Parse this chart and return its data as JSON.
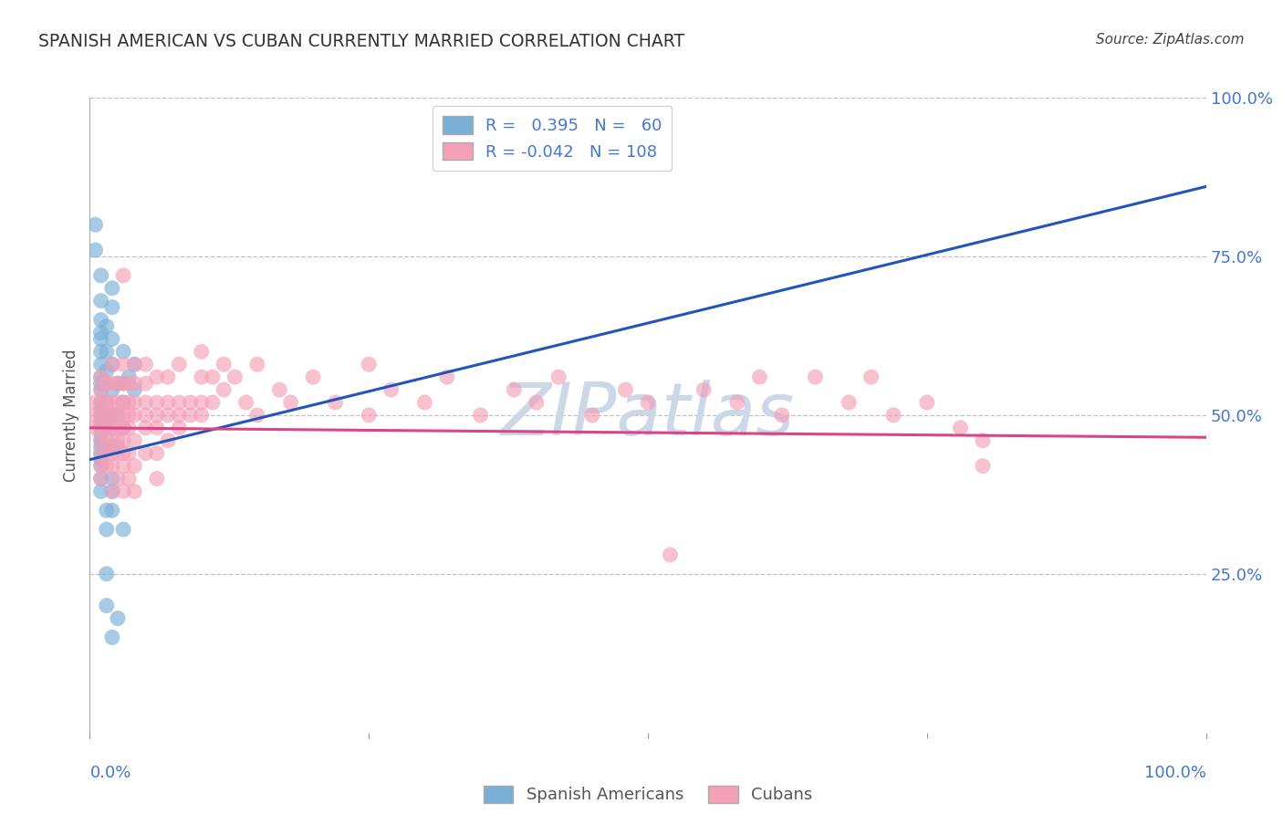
{
  "title": "SPANISH AMERICAN VS CUBAN CURRENTLY MARRIED CORRELATION CHART",
  "source": "Source: ZipAtlas.com",
  "ylabel": "Currently Married",
  "watermark": "ZIPAtlas",
  "blue_scatter": [
    [
      0.005,
      0.8
    ],
    [
      0.005,
      0.76
    ],
    [
      0.01,
      0.72
    ],
    [
      0.01,
      0.68
    ],
    [
      0.01,
      0.65
    ],
    [
      0.01,
      0.63
    ],
    [
      0.01,
      0.62
    ],
    [
      0.01,
      0.6
    ],
    [
      0.01,
      0.58
    ],
    [
      0.01,
      0.56
    ],
    [
      0.01,
      0.55
    ],
    [
      0.01,
      0.54
    ],
    [
      0.01,
      0.52
    ],
    [
      0.01,
      0.51
    ],
    [
      0.01,
      0.5
    ],
    [
      0.01,
      0.49
    ],
    [
      0.01,
      0.48
    ],
    [
      0.01,
      0.47
    ],
    [
      0.01,
      0.46
    ],
    [
      0.01,
      0.45
    ],
    [
      0.01,
      0.44
    ],
    [
      0.01,
      0.43
    ],
    [
      0.01,
      0.42
    ],
    [
      0.01,
      0.4
    ],
    [
      0.01,
      0.38
    ],
    [
      0.015,
      0.64
    ],
    [
      0.015,
      0.6
    ],
    [
      0.015,
      0.57
    ],
    [
      0.015,
      0.55
    ],
    [
      0.015,
      0.52
    ],
    [
      0.015,
      0.5
    ],
    [
      0.015,
      0.48
    ],
    [
      0.015,
      0.45
    ],
    [
      0.015,
      0.35
    ],
    [
      0.015,
      0.32
    ],
    [
      0.02,
      0.7
    ],
    [
      0.02,
      0.67
    ],
    [
      0.02,
      0.62
    ],
    [
      0.02,
      0.58
    ],
    [
      0.02,
      0.54
    ],
    [
      0.02,
      0.5
    ],
    [
      0.02,
      0.48
    ],
    [
      0.02,
      0.45
    ],
    [
      0.02,
      0.4
    ],
    [
      0.02,
      0.38
    ],
    [
      0.02,
      0.35
    ],
    [
      0.025,
      0.55
    ],
    [
      0.025,
      0.5
    ],
    [
      0.025,
      0.45
    ],
    [
      0.03,
      0.6
    ],
    [
      0.03,
      0.55
    ],
    [
      0.03,
      0.52
    ],
    [
      0.03,
      0.48
    ],
    [
      0.035,
      0.56
    ],
    [
      0.04,
      0.58
    ],
    [
      0.04,
      0.54
    ],
    [
      0.015,
      0.2
    ],
    [
      0.02,
      0.15
    ],
    [
      0.025,
      0.18
    ],
    [
      0.03,
      0.32
    ],
    [
      0.015,
      0.25
    ]
  ],
  "pink_scatter": [
    [
      0.005,
      0.52
    ],
    [
      0.005,
      0.5
    ],
    [
      0.005,
      0.48
    ],
    [
      0.01,
      0.56
    ],
    [
      0.01,
      0.54
    ],
    [
      0.01,
      0.52
    ],
    [
      0.01,
      0.5
    ],
    [
      0.01,
      0.48
    ],
    [
      0.01,
      0.46
    ],
    [
      0.01,
      0.44
    ],
    [
      0.01,
      0.42
    ],
    [
      0.01,
      0.4
    ],
    [
      0.015,
      0.55
    ],
    [
      0.015,
      0.52
    ],
    [
      0.015,
      0.5
    ],
    [
      0.015,
      0.48
    ],
    [
      0.015,
      0.46
    ],
    [
      0.015,
      0.44
    ],
    [
      0.015,
      0.42
    ],
    [
      0.02,
      0.58
    ],
    [
      0.02,
      0.55
    ],
    [
      0.02,
      0.52
    ],
    [
      0.02,
      0.5
    ],
    [
      0.02,
      0.48
    ],
    [
      0.02,
      0.46
    ],
    [
      0.02,
      0.44
    ],
    [
      0.02,
      0.42
    ],
    [
      0.02,
      0.38
    ],
    [
      0.025,
      0.55
    ],
    [
      0.025,
      0.52
    ],
    [
      0.025,
      0.5
    ],
    [
      0.025,
      0.48
    ],
    [
      0.025,
      0.46
    ],
    [
      0.025,
      0.44
    ],
    [
      0.025,
      0.4
    ],
    [
      0.03,
      0.72
    ],
    [
      0.03,
      0.58
    ],
    [
      0.03,
      0.55
    ],
    [
      0.03,
      0.52
    ],
    [
      0.03,
      0.5
    ],
    [
      0.03,
      0.48
    ],
    [
      0.03,
      0.46
    ],
    [
      0.03,
      0.44
    ],
    [
      0.03,
      0.42
    ],
    [
      0.03,
      0.38
    ],
    [
      0.035,
      0.55
    ],
    [
      0.035,
      0.52
    ],
    [
      0.035,
      0.5
    ],
    [
      0.035,
      0.48
    ],
    [
      0.035,
      0.44
    ],
    [
      0.035,
      0.4
    ],
    [
      0.04,
      0.58
    ],
    [
      0.04,
      0.55
    ],
    [
      0.04,
      0.52
    ],
    [
      0.04,
      0.5
    ],
    [
      0.04,
      0.46
    ],
    [
      0.04,
      0.42
    ],
    [
      0.04,
      0.38
    ],
    [
      0.05,
      0.58
    ],
    [
      0.05,
      0.55
    ],
    [
      0.05,
      0.52
    ],
    [
      0.05,
      0.5
    ],
    [
      0.05,
      0.48
    ],
    [
      0.05,
      0.44
    ],
    [
      0.06,
      0.56
    ],
    [
      0.06,
      0.52
    ],
    [
      0.06,
      0.5
    ],
    [
      0.06,
      0.48
    ],
    [
      0.06,
      0.44
    ],
    [
      0.06,
      0.4
    ],
    [
      0.07,
      0.56
    ],
    [
      0.07,
      0.52
    ],
    [
      0.07,
      0.5
    ],
    [
      0.07,
      0.46
    ],
    [
      0.08,
      0.58
    ],
    [
      0.08,
      0.52
    ],
    [
      0.08,
      0.5
    ],
    [
      0.08,
      0.48
    ],
    [
      0.09,
      0.52
    ],
    [
      0.09,
      0.5
    ],
    [
      0.1,
      0.6
    ],
    [
      0.1,
      0.56
    ],
    [
      0.1,
      0.52
    ],
    [
      0.1,
      0.5
    ],
    [
      0.11,
      0.56
    ],
    [
      0.11,
      0.52
    ],
    [
      0.12,
      0.58
    ],
    [
      0.12,
      0.54
    ],
    [
      0.13,
      0.56
    ],
    [
      0.14,
      0.52
    ],
    [
      0.15,
      0.58
    ],
    [
      0.15,
      0.5
    ],
    [
      0.17,
      0.54
    ],
    [
      0.18,
      0.52
    ],
    [
      0.2,
      0.56
    ],
    [
      0.22,
      0.52
    ],
    [
      0.25,
      0.58
    ],
    [
      0.25,
      0.5
    ],
    [
      0.27,
      0.54
    ],
    [
      0.3,
      0.52
    ],
    [
      0.32,
      0.56
    ],
    [
      0.35,
      0.5
    ],
    [
      0.38,
      0.54
    ],
    [
      0.4,
      0.52
    ],
    [
      0.42,
      0.56
    ],
    [
      0.45,
      0.5
    ],
    [
      0.48,
      0.54
    ],
    [
      0.5,
      0.52
    ],
    [
      0.52,
      0.28
    ],
    [
      0.55,
      0.54
    ],
    [
      0.58,
      0.52
    ],
    [
      0.6,
      0.56
    ],
    [
      0.62,
      0.5
    ],
    [
      0.65,
      0.56
    ],
    [
      0.68,
      0.52
    ],
    [
      0.7,
      0.56
    ],
    [
      0.72,
      0.5
    ],
    [
      0.75,
      0.52
    ],
    [
      0.78,
      0.48
    ],
    [
      0.8,
      0.46
    ],
    [
      0.8,
      0.42
    ]
  ],
  "blue_line": [
    [
      0.0,
      0.43
    ],
    [
      1.0,
      0.86
    ]
  ],
  "pink_line": [
    [
      0.0,
      0.48
    ],
    [
      1.0,
      0.465
    ]
  ],
  "blue_color": "#7ab0d8",
  "pink_color": "#f4a0b8",
  "blue_line_color": "#2255bb",
  "pink_line_color": "#dd4488",
  "background_color": "#ffffff",
  "grid_color": "#c0c0cc",
  "title_color": "#333333",
  "right_axis_color": "#4477cc",
  "watermark_color": "#ccd8e8",
  "xlim": [
    0.0,
    1.0
  ],
  "ylim": [
    0.0,
    1.0
  ]
}
